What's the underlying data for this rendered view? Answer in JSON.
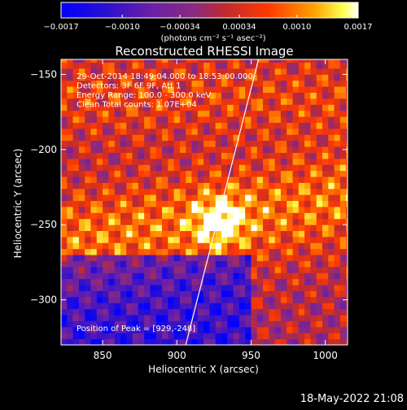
{
  "colorbar": {
    "ticks": [
      "-0.0017",
      "-0.0010",
      "-0.00034",
      "0.00034",
      "0.0010",
      "0.0017"
    ],
    "min": -0.0017,
    "max": 0.0017,
    "unit_label": "(photons cm⁻² s⁻¹ asec⁻²)"
  },
  "chart_data": {
    "type": "heatmap",
    "title": "Reconstructed RHESSI Image",
    "xlabel": "Heliocentric X (arcsec)",
    "ylabel": "Heliocentric Y (arcsec)",
    "xlim": [
      822,
      1015
    ],
    "ylim": [
      -330,
      -140
    ],
    "x_ticks": [
      850,
      900,
      950,
      1000
    ],
    "y_ticks": [
      -150,
      -200,
      -250,
      -300
    ],
    "x_tick_labels": [
      "850",
      "900",
      "950",
      "1000"
    ],
    "y_tick_labels": [
      "−150",
      "−200",
      "−250",
      "−300"
    ],
    "annotations": [
      "29-Oct-2014 18:49:04.000 to 18:53:00.000",
      "Detectors: 3F 6F 9F, Att 1",
      "Energy Range: 100.0 - 300.0 keV",
      "Clean    Total counts: 1.07E+04"
    ],
    "peak_label": "Position of Peak = [929,-248]",
    "peak": [
      929,
      -248
    ],
    "limb_line": [
      [
        906,
        -330
      ],
      [
        955,
        -140
      ]
    ],
    "colormap": "rainbow-red-yellow"
  },
  "footer": {
    "timestamp": "18-May-2022 21:08"
  }
}
